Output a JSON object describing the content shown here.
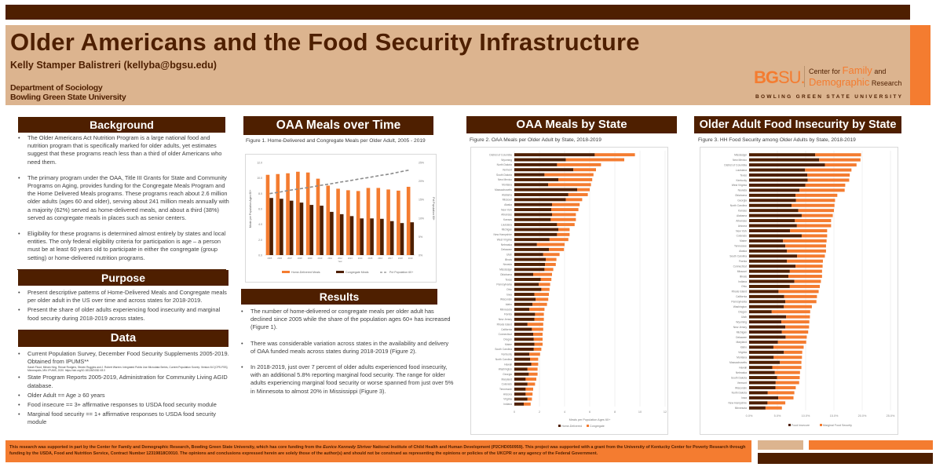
{
  "header": {
    "title": "Older Americans and the Food Security Infrastructure",
    "author": "Kelly Stamper Balistreri (kellyba@bgsu.edu)",
    "department": "Department of Sociology",
    "university": "Bowling Green State University",
    "logo": {
      "bg": "BG",
      "su": "SU.",
      "center_for": "Center for ",
      "family": "Family",
      "and": " and",
      "demographic": "Demographic",
      "research": " Research",
      "full_name": "BOWLING GREEN STATE UNIVERSITY"
    }
  },
  "colors": {
    "brown": "#4e1f00",
    "orange": "#f47c30",
    "tan": "#dcb48f",
    "gray_dashed": "#8c8c8c"
  },
  "background": {
    "heading": "Background",
    "bullets": [
      "The Older Americans Act Nutrition Program is a large national food and nutrition program that is specifically marked for older adults, yet estimates suggest that these programs reach less than a third of older Americans who need them.",
      "The primary program under the OAA, Title III Grants for State and Community Programs on Aging, provides funding for the Congregate Meals Program and the Home Delivered Meals programs. These programs reach about 2.6 million older adults (ages 60 and older), serving about 241 million meals annually with a majority (62%) served as home-delivered meals, and about a third (38%) served as congregate meals in places such as senior centers.",
      "Eligibility for these programs is determined almost entirely by states and local entities. The only federal eligibility criteria for participation is age – a person must be at least 60 years old to participate in either the congregate (group setting) or home-delivered nutrition programs."
    ]
  },
  "purpose": {
    "heading": "Purpose",
    "bullets": [
      "Present descriptive patterns of Home-Delivered Meals and Congregate meals per older adult in the US over time and across states for 2018-2019.",
      "Present the share of older adults experiencing food insecurity and marginal food security during 2018-2019 across states."
    ]
  },
  "data_section": {
    "heading": "Data",
    "bullet1_main": "Current Population Survey, December Food Security Supplements 2005-2019. Obtained from IPUMS**",
    "bullet1_cite": "Sarah Flood, Miriam King, Renae Rodgers, Steven Ruggles and J. Robert Warren. Integrated Public Use Microdata Series, Current Population Survey: Version 8.0 [CPS-FSS]. Minneapolis, MN: IPUMS, 2020. https://doi.org/10.18128/D030.V8.0",
    "bullets": [
      "State Program Reports 2005-2019, Administration for Community Living AGID database.",
      "Older Adult == Age ≥ 60 years",
      "Food insecure == 3+ affirmative responses to USDA food security module",
      "Marginal food security == 1+ affirmative responses to USDA food security module"
    ]
  },
  "meals_over_time": {
    "heading": "OAA Meals over Time",
    "caption": "Figure 1.  Home-Delivered and Congregate Meals per Older Adult, 2005 - 2019"
  },
  "results": {
    "heading": "Results",
    "bullets": [
      "The number of home-delivered or congregate meals per older adult has declined since 2005 while the share of the population ages 60+ has increased (Figure 1).",
      "There was considerable variation across states in the availability and delivery of OAA funded meals across states during 2018-2019 (Figure 2).",
      "In 2018-2019, just over 7 percent of older adults experienced food insecurity, with an additional 5.8% reporting marginal food security. The range for older adults experiencing marginal food security or worse spanned from just over 5% in Minnesota to almost 20% in Mississippi (Figure 3)."
    ]
  },
  "meals_by_state": {
    "heading": "OAA Meals by State",
    "caption": "Figure 2. OAA Meals per Older Adult by State, 2018-2019"
  },
  "food_insecurity": {
    "heading": "Older Adult Food Insecurity by State",
    "caption": "Figure 3. HH Food Security among Older Adults by State, 2018-2019"
  },
  "footer": {
    "text_1": "This research was supported in part by the Center for Family and Demographic Research, Bowling Green State University, which has core funding from the ",
    "text_italic": "Eunice Kennedy Shriver",
    "text_2": " National Institute of Child Health and Human Development (P2CHD050959).  This project was supported with a grant from the University of Kentucky Center for Poverty Research through funding by the USDA, Food and Nutrition Service, Contract Number 12319818C0010. The opinions and conclusions expressed herein are solely those of the author(s) and should not be construed as representing the opinions or policies of the UKCPR or any agency of the Federal Government."
  },
  "chart_data": [
    {
      "id": "figure1",
      "type": "bar",
      "title": "Home-Delivered and Congregate Meals per Older Adult, 2005 - 2019",
      "xlabel": "Year",
      "ylabel": "Meals per Population Ages 60+",
      "y2label": "Pct Population 60+",
      "categories": [
        "2005",
        "2006",
        "2007",
        "2008",
        "2009",
        "2010",
        "2011",
        "2012",
        "2013",
        "2014",
        "2015",
        "2016",
        "2017",
        "2018",
        "2019"
      ],
      "series": [
        {
          "name": "Home-Delivered Meals",
          "type": "bar",
          "color": "#f47c30",
          "values": [
            10.4,
            10.5,
            10.6,
            10.8,
            10.7,
            9.9,
            9.0,
            8.6,
            8.4,
            8.3,
            8.7,
            8.7,
            8.5,
            8.35,
            8.85
          ]
        },
        {
          "name": "Congregate Meals",
          "type": "bar",
          "color": "#4e1f00",
          "values": [
            7.4,
            7.3,
            7.05,
            6.8,
            6.5,
            6.4,
            5.6,
            5.3,
            5.05,
            4.75,
            4.75,
            4.7,
            4.4,
            4.15,
            4.25
          ]
        },
        {
          "name": "Pct Population 60+",
          "type": "line",
          "axis": "right",
          "style": "dashed",
          "color": "#8c8c8c",
          "values": [
            16.6,
            17.0,
            17.5,
            17.9,
            18.3,
            18.8,
            19.2,
            19.7,
            20.1,
            20.6,
            21.0,
            21.5,
            21.9,
            22.5,
            23.0
          ]
        }
      ],
      "ylim": [
        0,
        12
      ],
      "yticks": [
        "0.0",
        "2.0",
        "4.0",
        "6.0",
        "8.0",
        "10.0",
        "12.0"
      ],
      "y2lim": [
        0,
        25
      ],
      "y2ticks": [
        "0%",
        "5%",
        "10%",
        "15%",
        "20%",
        "25%"
      ],
      "legend": "bottom",
      "grid": false
    },
    {
      "id": "figure2",
      "type": "bar",
      "orientation": "horizontal",
      "stacked": true,
      "title": "OAA Meals per Older Adult by State, 2018-2019",
      "xlabel": "Meals per Population Ages 60+",
      "xlim": [
        0,
        12
      ],
      "xticks": [
        "0",
        "2",
        "4",
        "6",
        "8",
        "10",
        "12"
      ],
      "legend": "bottom",
      "grid": true,
      "categories": [
        "District of Columbia",
        "Wyoming",
        "North Dakota",
        "Vermont",
        "South Dakota",
        "New Mexico",
        "Montana",
        "Massachusetts",
        "Alabama",
        "Missouri",
        "Alaska",
        "New York",
        "Arkansas",
        "Kansas",
        "Louisiana",
        "Michigan",
        "New Hampshire",
        "West Virginia",
        "Nebraska",
        "Delaware",
        "Utah",
        "Illinois",
        "Nevada",
        "Mississippi",
        "Oklahoma",
        "Texas",
        "Pennsylvania",
        "Ohio",
        "Iowa",
        "Wisconsin",
        "Idaho",
        "Minnesota",
        "Florida",
        "New Jersey",
        "Rhode Island",
        "California",
        "Connecticut",
        "Oregon",
        "Maine",
        "South Carolina",
        "Kentucky",
        "North Carolina",
        "Hawaii",
        "Washington",
        "Georgia",
        "Maryland",
        "Colorado",
        "Tennessee",
        "Arizona",
        "Virginia",
        "Indiana"
      ],
      "series": [
        {
          "name": "Home-Delivered",
          "color": "#4e1f00",
          "values": [
            6.4,
            4.1,
            3.4,
            4.7,
            2.4,
            3.5,
            2.7,
            5.0,
            4.3,
            4.1,
            3.0,
            2.95,
            3.0,
            2.9,
            3.4,
            3.5,
            3.4,
            2.8,
            1.8,
            2.75,
            2.3,
            2.5,
            2.45,
            2.4,
            1.5,
            2.1,
            1.95,
            2.15,
            1.6,
            1.7,
            1.45,
            1.2,
            1.65,
            1.6,
            1.05,
            1.4,
            1.5,
            1.55,
            1.6,
            1.55,
            1.2,
            1.25,
            1.35,
            1.05,
            1.15,
            0.9,
            1.05,
            0.9,
            0.9,
            1.05,
            0.75
          ]
        },
        {
          "name": "Congregate",
          "color": "#f47c30",
          "values": [
            3.2,
            4.65,
            3.5,
            1.8,
            3.9,
            2.7,
            3.4,
            1.0,
            1.55,
            1.3,
            2.2,
            2.15,
            1.9,
            2.0,
            1.4,
            0.9,
            1.0,
            1.5,
            2.2,
            1.2,
            1.3,
            0.85,
            0.85,
            0.7,
            1.5,
            0.85,
            0.9,
            0.65,
            1.15,
            1.0,
            1.15,
            1.2,
            0.7,
            0.75,
            1.25,
            0.9,
            0.75,
            0.7,
            0.65,
            0.6,
            0.85,
            0.65,
            0.55,
            0.8,
            0.7,
            0.85,
            0.6,
            0.6,
            0.55,
            0.35,
            0.55
          ]
        }
      ]
    },
    {
      "id": "figure3",
      "type": "bar",
      "orientation": "horizontal",
      "stacked": true,
      "title": "HH Food Security among Older Adults by State, 2018-2019",
      "xlim": [
        0,
        25
      ],
      "xticks": [
        "0.0%",
        "5.0%",
        "10.0%",
        "15.0%",
        "20.0%",
        "25.0%"
      ],
      "legend": "bottom",
      "grid": true,
      "categories": [
        "Mississippi",
        "New Mexico",
        "District of Columbia",
        "Louisiana",
        "Texas",
        "Kentucky",
        "West Virginia",
        "Nevada",
        "Oklahoma",
        "Georgia",
        "North Carolina",
        "Kansas",
        "Alabama",
        "Arkansas",
        "Arizona",
        "New York",
        "Colorado",
        "Maine",
        "Tennessee",
        "Alaska",
        "South Carolina",
        "Florida",
        "Connecticut",
        "Missouri",
        "Illinois",
        "Indiana",
        "Ohio",
        "Rhode Island",
        "California",
        "Pennsylvania",
        "Washington",
        "Oregon",
        "Utah",
        "Wyoming",
        "New Jersey",
        "Michigan",
        "Delaware",
        "Maryland",
        "Idaho",
        "Virginia",
        "Montana",
        "Massachusetts",
        "Hawaii",
        "Nebraska",
        "South Dakota",
        "Vermont",
        "Wisconsin",
        "North Dakota",
        "Iowa",
        "New Hampshire",
        "Minnesota"
      ],
      "series": [
        {
          "name": "Food Insecure",
          "color": "#4e1f00",
          "values": [
            11.7,
            12.4,
            13.4,
            9.9,
            10.3,
            10.35,
            9.95,
            8.9,
            8.2,
            8.3,
            7.5,
            8.7,
            9.3,
            8.1,
            8.45,
            7.25,
            9.3,
            6.0,
            6.4,
            6.7,
            8.5,
            6.7,
            8.2,
            7.2,
            6.95,
            8.0,
            7.2,
            5.2,
            6.2,
            6.4,
            6.15,
            4.0,
            6.55,
            5.7,
            6.4,
            5.8,
            6.45,
            5.1,
            4.3,
            6.15,
            4.35,
            5.45,
            4.1,
            4.55,
            4.95,
            4.7,
            4.65,
            3.3,
            5.15,
            3.25,
            2.9
          ]
        },
        {
          "name": "Marginal Food Security",
          "color": "#f47c30",
          "values": [
            8.1,
            7.3,
            5.6,
            8.2,
            7.5,
            7.35,
            7.05,
            8.0,
            7.4,
            6.9,
            7.6,
            6.3,
            5.5,
            6.4,
            6.05,
            6.55,
            4.5,
            7.7,
            7.2,
            6.9,
            4.9,
            6.35,
            4.8,
            5.7,
            5.95,
            4.7,
            5.3,
            7.1,
            5.8,
            5.5,
            4.95,
            6.8,
            4.2,
            4.95,
            4.2,
            4.65,
            3.75,
            5.0,
            5.35,
            3.25,
            5.0,
            3.8,
            5.15,
            4.45,
            4.0,
            4.15,
            3.6,
            4.7,
            2.7,
            3.15,
            2.9
          ]
        }
      ]
    }
  ]
}
